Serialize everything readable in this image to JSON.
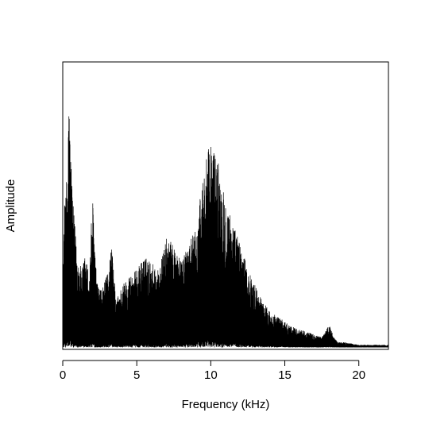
{
  "chart_data": {
    "type": "line",
    "title": "",
    "xlabel": "Frequency (kHz)",
    "ylabel": "Amplitude",
    "xlim": [
      0,
      22
    ],
    "ylim": [
      0,
      1
    ],
    "x_ticks": [
      0,
      5,
      10,
      15,
      20
    ],
    "x_tick_labels": [
      "0",
      "5",
      "10",
      "15",
      "20"
    ],
    "y_ticks_shown": false,
    "grid": false,
    "legend": "none",
    "series": [
      {
        "color": "#000000",
        "envelope_x": [
          0.0,
          0.2,
          0.3,
          0.4,
          0.5,
          0.7,
          1.0,
          1.3,
          1.5,
          1.8,
          2.0,
          2.3,
          2.6,
          3.0,
          3.3,
          3.6,
          4.0,
          4.5,
          5.0,
          5.5,
          6.0,
          6.5,
          7.0,
          7.5,
          8.0,
          8.5,
          9.0,
          9.5,
          10.0,
          10.5,
          11.0,
          11.5,
          12.0,
          12.5,
          13.0,
          13.5,
          14.0,
          14.5,
          15.0,
          15.5,
          16.0,
          16.5,
          17.0,
          17.5,
          18.0,
          18.3,
          18.6,
          19.0,
          19.5,
          20.0,
          21.0,
          22.0
        ],
        "envelope_y": [
          0.28,
          0.72,
          0.56,
          1.0,
          0.82,
          0.55,
          0.35,
          0.3,
          0.36,
          0.28,
          0.6,
          0.25,
          0.22,
          0.28,
          0.4,
          0.18,
          0.24,
          0.28,
          0.3,
          0.35,
          0.33,
          0.3,
          0.42,
          0.4,
          0.33,
          0.42,
          0.45,
          0.68,
          0.8,
          0.72,
          0.58,
          0.48,
          0.4,
          0.3,
          0.24,
          0.18,
          0.14,
          0.12,
          0.1,
          0.08,
          0.07,
          0.06,
          0.05,
          0.04,
          0.09,
          0.04,
          0.02,
          0.02,
          0.015,
          0.01,
          0.01,
          0.01
        ]
      }
    ]
  }
}
